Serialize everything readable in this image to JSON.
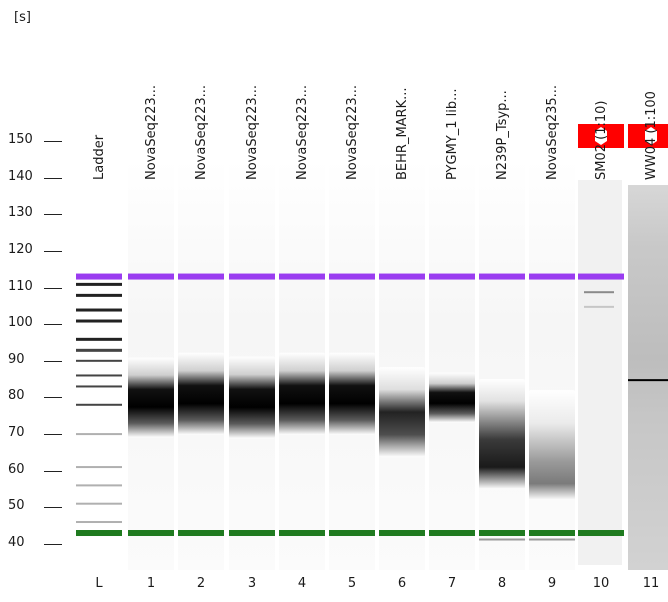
{
  "app": {
    "y_axis_unit": "[s]"
  },
  "y_axis": {
    "min": 40,
    "max": 150,
    "ticks": [
      "150",
      "140",
      "130",
      "120",
      "110",
      "100",
      "90",
      "80",
      "70",
      "60",
      "50",
      "40"
    ]
  },
  "lanes": [
    {
      "id": "L",
      "sample": "Ladder"
    },
    {
      "id": "1",
      "sample": "NovaSeq223..."
    },
    {
      "id": "2",
      "sample": "NovaSeq223..."
    },
    {
      "id": "3",
      "sample": "NovaSeq223..."
    },
    {
      "id": "4",
      "sample": "NovaSeq223..."
    },
    {
      "id": "5",
      "sample": "NovaSeq223..."
    },
    {
      "id": "6",
      "sample": "BEHR_MARK..."
    },
    {
      "id": "7",
      "sample": "PYGMY_1 lib..."
    },
    {
      "id": "8",
      "sample": "N239P_Tsyp..."
    },
    {
      "id": "9",
      "sample": "NovaSeq235..."
    },
    {
      "id": "10",
      "sample": "SM02 (1:10)"
    },
    {
      "id": "11",
      "sample": "WW04 (1:100"
    }
  ],
  "markers": {
    "upper_marker_color": "#9a3cf0",
    "lower_marker_color": "#1f7a1f",
    "upper_marker_time": 113,
    "lower_marker_time": 43
  },
  "alerts": [
    {
      "lane": "10",
      "icon": "warning-icon",
      "color": "#ff0000"
    },
    {
      "lane": "11",
      "icon": "warning-icon",
      "color": "#ff0000"
    }
  ],
  "ladder_bands": [
    46,
    51,
    56,
    61,
    70,
    78,
    83,
    86,
    90,
    93,
    96,
    101,
    104,
    108,
    111
  ]
}
